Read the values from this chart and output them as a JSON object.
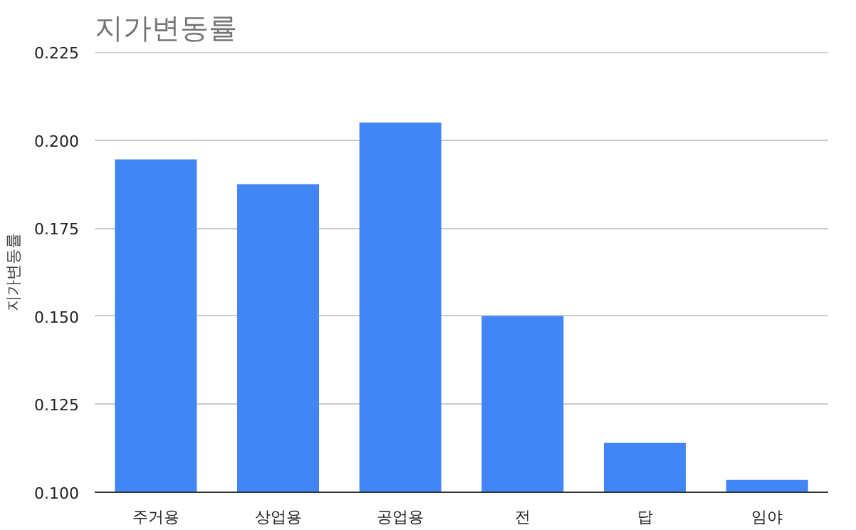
{
  "chart_data": {
    "type": "bar",
    "title": "지가변동률",
    "ylabel": "지가변동률",
    "categories": [
      "주거용",
      "상업용",
      "공업용",
      "전",
      "답",
      "임야"
    ],
    "values": [
      0.1945,
      0.1875,
      0.205,
      0.15,
      0.114,
      0.1035
    ],
    "color": "#4285f4",
    "ylim": [
      0.1,
      0.225
    ],
    "yticks": [
      {
        "value": 0.1,
        "label": "0.100"
      },
      {
        "value": 0.125,
        "label": "0.125"
      },
      {
        "value": 0.15,
        "label": "0.150"
      },
      {
        "value": 0.175,
        "label": "0.175"
      },
      {
        "value": 0.2,
        "label": "0.200"
      },
      {
        "value": 0.225,
        "label": "0.225"
      }
    ],
    "grid": "y"
  }
}
